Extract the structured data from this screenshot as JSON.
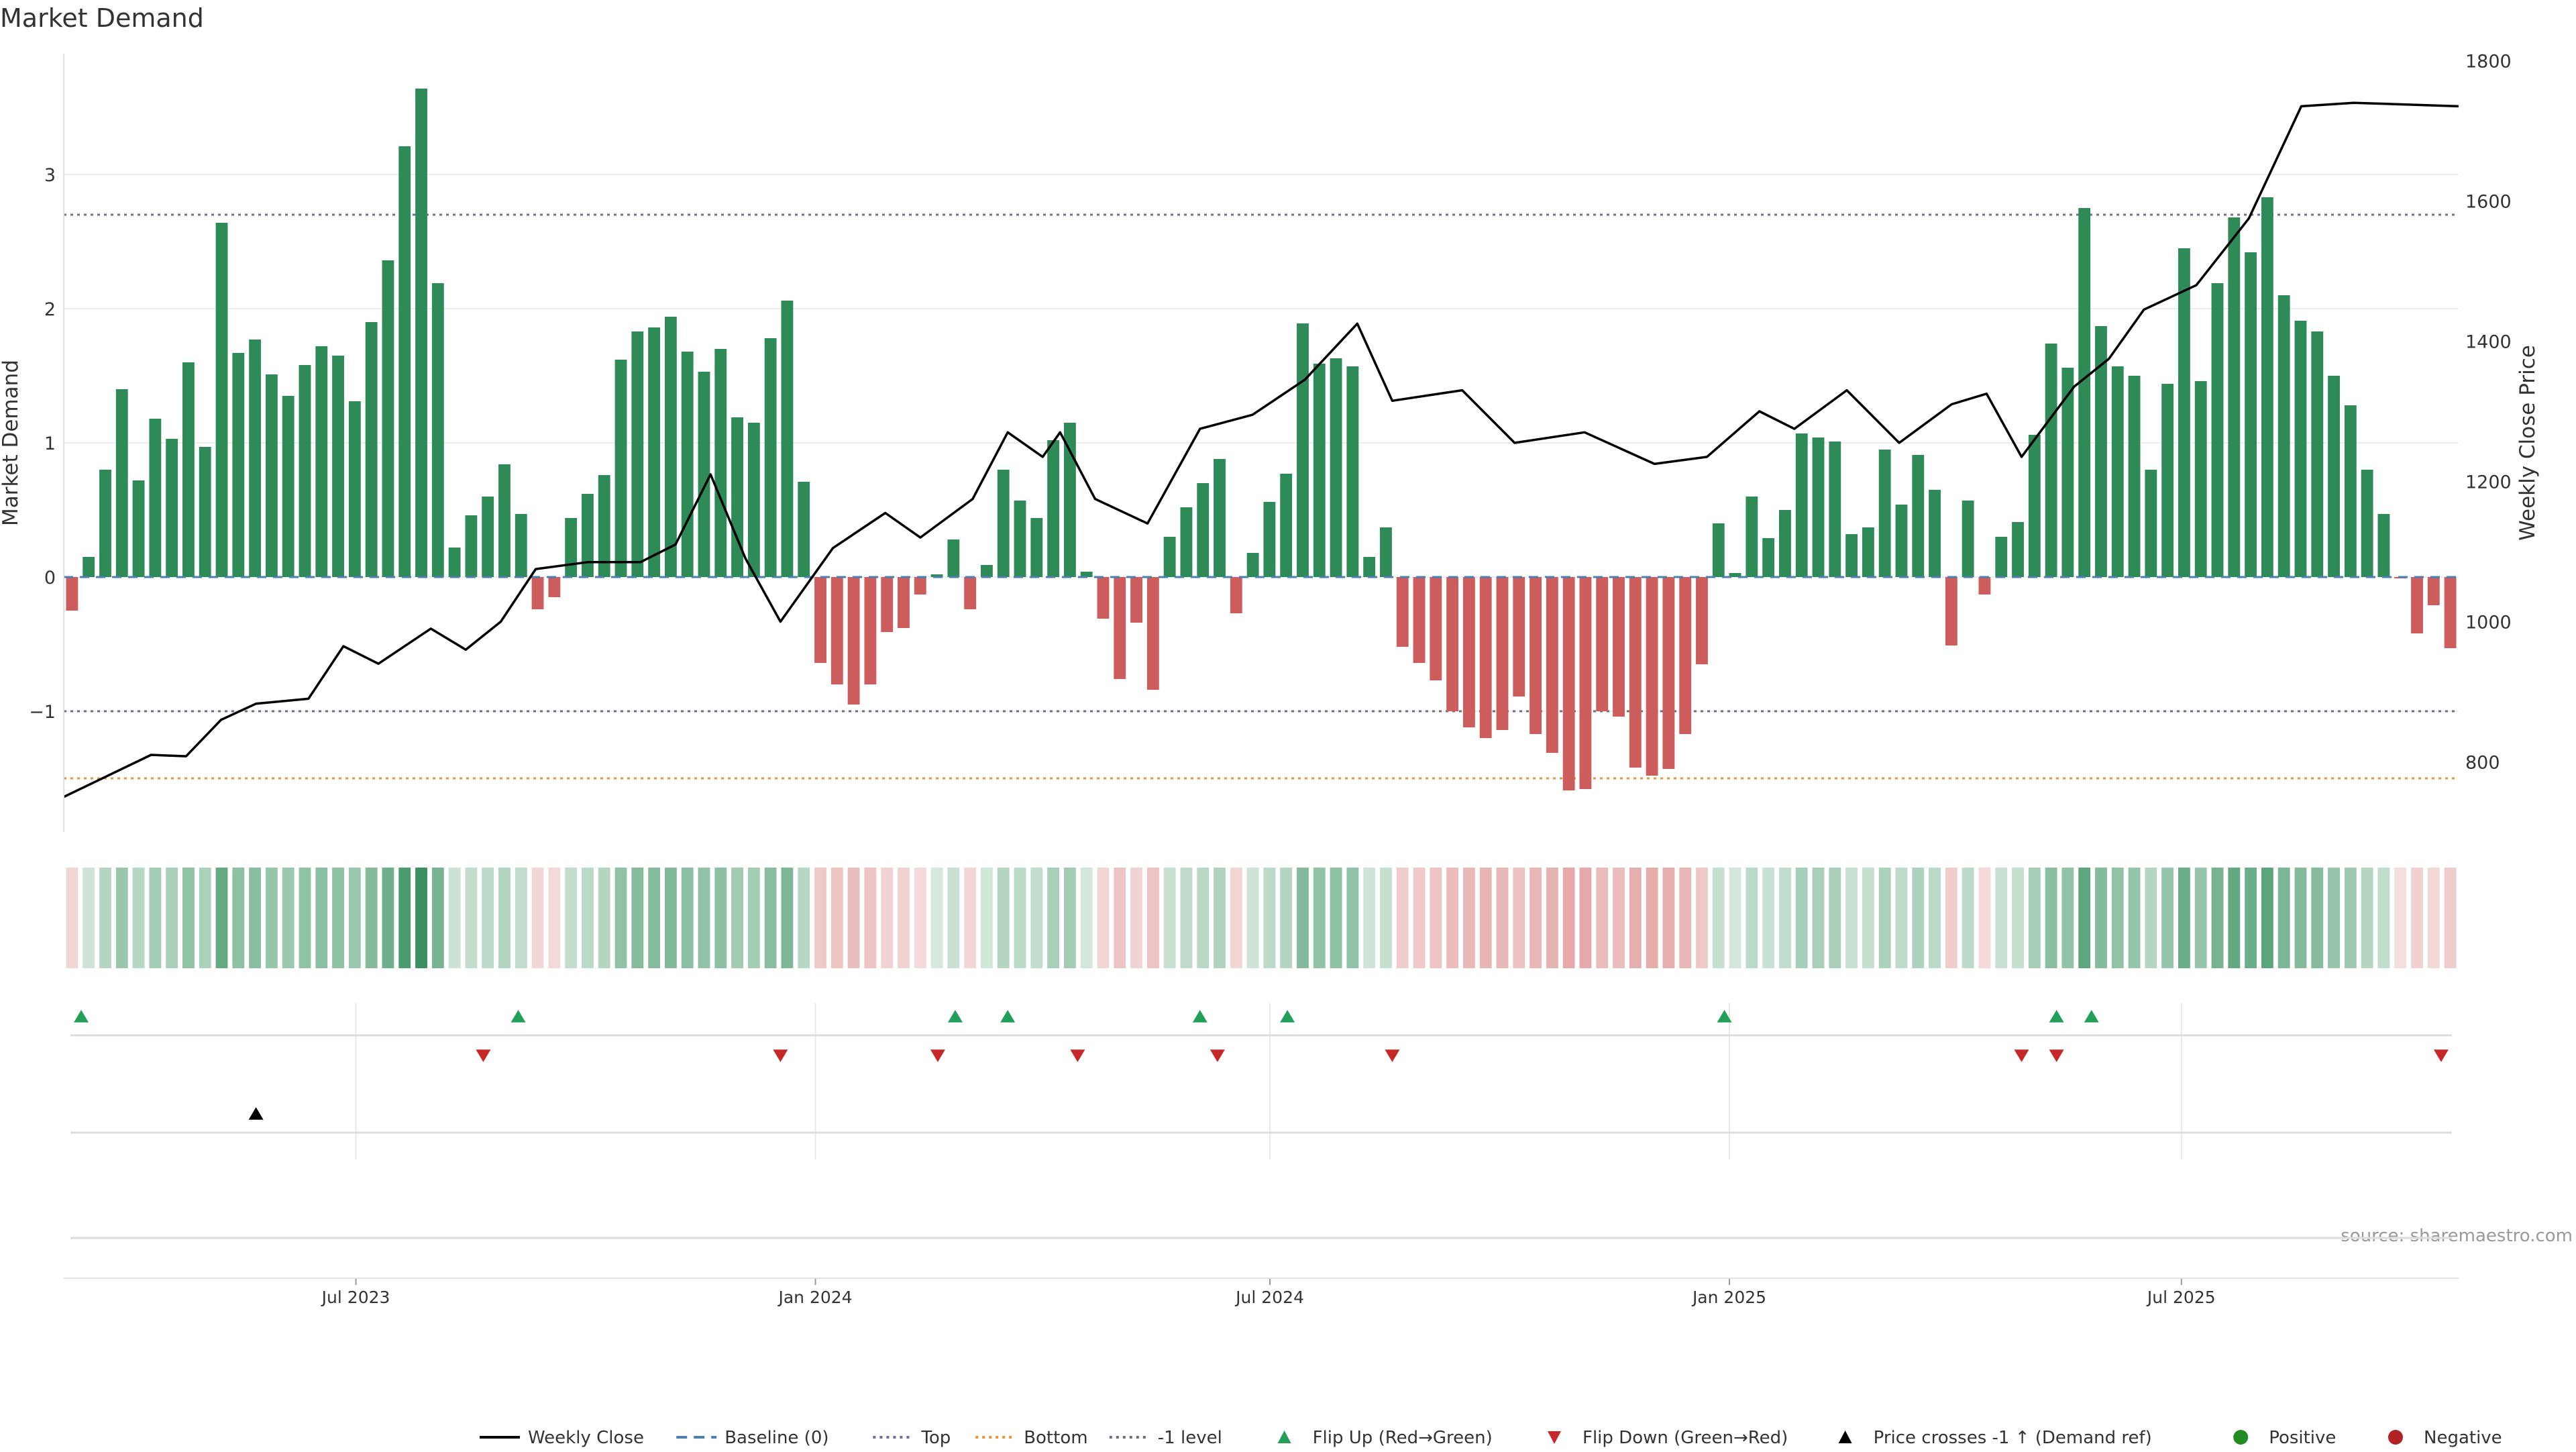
{
  "chart_data": {
    "type": "bar",
    "title": "Market Demand",
    "ylabel": "Market Demand",
    "y2label": "Weekly Close Price",
    "ylim": [
      -1.9,
      3.9
    ],
    "y2lim": [
      700,
      1810
    ],
    "yticks": [
      -1,
      0,
      1,
      2,
      3
    ],
    "y2ticks": [
      800,
      1000,
      1200,
      1400,
      1600,
      1800
    ],
    "x_start": "2023-03-06",
    "x_end": "2025-10-20",
    "xticks": [
      {
        "date": "2023-07-01",
        "label": "Jul 2023"
      },
      {
        "date": "2024-01-01",
        "label": "Jan 2024"
      },
      {
        "date": "2024-07-01",
        "label": "Jul 2024"
      },
      {
        "date": "2025-01-01",
        "label": "Jan 2025"
      },
      {
        "date": "2025-07-01",
        "label": "Jul 2025"
      }
    ],
    "levels": {
      "baseline": 0,
      "top": 2.7,
      "bottom": -1.5,
      "minus_one": -1
    },
    "demand": [
      -0.25,
      0.15,
      0.8,
      1.4,
      0.72,
      1.18,
      1.03,
      1.6,
      0.97,
      2.64,
      1.67,
      1.77,
      1.51,
      1.35,
      1.58,
      1.72,
      1.65,
      1.31,
      1.9,
      2.36,
      3.21,
      3.64,
      2.19,
      0.22,
      0.46,
      0.6,
      0.84,
      0.47,
      -0.24,
      -0.15,
      0.44,
      0.62,
      0.76,
      1.62,
      1.83,
      1.86,
      1.94,
      1.68,
      1.53,
      1.7,
      1.19,
      1.15,
      1.78,
      2.06,
      0.71,
      -0.64,
      -0.8,
      -0.95,
      -0.8,
      -0.41,
      -0.38,
      -0.13,
      0.02,
      0.28,
      -0.24,
      0.09,
      0.8,
      0.57,
      0.44,
      1.02,
      1.15,
      0.04,
      -0.31,
      -0.76,
      -0.34,
      -0.84,
      0.3,
      0.52,
      0.7,
      0.88,
      -0.27,
      0.18,
      0.56,
      0.77,
      1.89,
      1.59,
      1.63,
      1.57,
      0.15,
      0.37,
      -0.52,
      -0.64,
      -0.77,
      -1.0,
      -1.12,
      -1.2,
      -1.14,
      -0.89,
      -1.17,
      -1.31,
      -1.59,
      -1.58,
      -1.0,
      -1.04,
      -1.42,
      -1.48,
      -1.43,
      -1.17,
      -0.65,
      0.4,
      0.03,
      0.6,
      0.29,
      0.5,
      1.07,
      1.04,
      1.01,
      0.32,
      0.37,
      0.95,
      0.54,
      0.91,
      0.65,
      -0.51,
      0.57,
      -0.13,
      0.3,
      0.41,
      1.06,
      1.74,
      1.56,
      2.75,
      1.87,
      1.57,
      1.5,
      0.8,
      1.44,
      2.45,
      1.46,
      2.19,
      2.68,
      2.42,
      2.83,
      2.1,
      1.91,
      1.83,
      1.5,
      1.28,
      0.8,
      0.47,
      -0.01,
      -0.42,
      -0.21,
      -0.53
    ],
    "close_series": [
      {
        "date": "2023-03-06",
        "close": 750
      },
      {
        "date": "2023-04-10",
        "close": 810
      },
      {
        "date": "2023-04-24",
        "close": 808
      },
      {
        "date": "2023-05-08",
        "close": 860
      },
      {
        "date": "2023-05-22",
        "close": 883
      },
      {
        "date": "2023-06-12",
        "close": 890
      },
      {
        "date": "2023-06-26",
        "close": 965
      },
      {
        "date": "2023-07-10",
        "close": 940
      },
      {
        "date": "2023-07-31",
        "close": 990
      },
      {
        "date": "2023-08-14",
        "close": 960
      },
      {
        "date": "2023-08-28",
        "close": 1000
      },
      {
        "date": "2023-09-11",
        "close": 1075
      },
      {
        "date": "2023-10-02",
        "close": 1085
      },
      {
        "date": "2023-10-23",
        "close": 1085
      },
      {
        "date": "2023-11-06",
        "close": 1110
      },
      {
        "date": "2023-11-20",
        "close": 1210
      },
      {
        "date": "2023-12-04",
        "close": 1090
      },
      {
        "date": "2023-12-18",
        "close": 1000
      },
      {
        "date": "2024-01-08",
        "close": 1105
      },
      {
        "date": "2024-01-29",
        "close": 1155
      },
      {
        "date": "2024-02-12",
        "close": 1120
      },
      {
        "date": "2024-03-04",
        "close": 1175
      },
      {
        "date": "2024-03-18",
        "close": 1270
      },
      {
        "date": "2024-04-01",
        "close": 1235
      },
      {
        "date": "2024-04-08",
        "close": 1270
      },
      {
        "date": "2024-04-22",
        "close": 1175
      },
      {
        "date": "2024-05-13",
        "close": 1140
      },
      {
        "date": "2024-06-03",
        "close": 1275
      },
      {
        "date": "2024-06-24",
        "close": 1295
      },
      {
        "date": "2024-07-15",
        "close": 1345
      },
      {
        "date": "2024-08-05",
        "close": 1425
      },
      {
        "date": "2024-08-19",
        "close": 1315
      },
      {
        "date": "2024-09-16",
        "close": 1330
      },
      {
        "date": "2024-10-07",
        "close": 1255
      },
      {
        "date": "2024-11-04",
        "close": 1270
      },
      {
        "date": "2024-12-02",
        "close": 1225
      },
      {
        "date": "2024-12-23",
        "close": 1235
      },
      {
        "date": "2025-01-13",
        "close": 1300
      },
      {
        "date": "2025-01-27",
        "close": 1275
      },
      {
        "date": "2025-02-17",
        "close": 1330
      },
      {
        "date": "2025-03-10",
        "close": 1255
      },
      {
        "date": "2025-03-31",
        "close": 1310
      },
      {
        "date": "2025-04-14",
        "close": 1325
      },
      {
        "date": "2025-04-28",
        "close": 1235
      },
      {
        "date": "2025-05-19",
        "close": 1335
      },
      {
        "date": "2025-06-02",
        "close": 1375
      },
      {
        "date": "2025-06-16",
        "close": 1445
      },
      {
        "date": "2025-07-07",
        "close": 1480
      },
      {
        "date": "2025-07-28",
        "close": 1575
      },
      {
        "date": "2025-08-18",
        "close": 1735
      },
      {
        "date": "2025-09-08",
        "close": 1740
      },
      {
        "date": "2025-10-20",
        "close": 1735
      }
    ],
    "flip_up_dates": [
      "2023-03-13",
      "2023-09-04",
      "2024-02-26",
      "2024-03-18",
      "2024-06-03",
      "2024-07-08",
      "2024-12-30",
      "2025-05-12",
      "2025-05-26"
    ],
    "flip_down_dates": [
      "2023-08-21",
      "2023-12-18",
      "2024-02-19",
      "2024-04-15",
      "2024-06-10",
      "2024-08-19",
      "2025-04-28",
      "2025-05-12",
      "2025-10-13"
    ],
    "price_cross_dates": [
      "2023-05-22"
    ],
    "legend_position": "bottom-center",
    "legend": [
      {
        "key": "weekly",
        "label": "Weekly Close"
      },
      {
        "key": "baseline",
        "label": "Baseline (0)"
      },
      {
        "key": "top",
        "label": "Top"
      },
      {
        "key": "bottom",
        "label": "Bottom"
      },
      {
        "key": "minus1",
        "label": "-1 level"
      },
      {
        "key": "flipup",
        "label": "Flip Up (Red→Green)"
      },
      {
        "key": "flipdown",
        "label": "Flip Down (Green→Red)"
      },
      {
        "key": "cross",
        "label": "Price crosses -1 ↑ (Demand ref)"
      },
      {
        "key": "positive",
        "label": "Positive"
      },
      {
        "key": "negative",
        "label": "Negative"
      }
    ],
    "source": "source: sharemaestro.com"
  },
  "colors": {
    "positive": "#2e8b57",
    "negative": "#cd5c5c",
    "close": "#000000",
    "baseline": "#4a7fb0",
    "top": "#6e6ea0",
    "bottom": "#e8963c",
    "minus_one": "#6e6e80",
    "flip_up": "#22a05a",
    "flip_down": "#c62828",
    "cross": "#000000",
    "legend_positive": "#228b22",
    "legend_negative": "#b22222"
  }
}
